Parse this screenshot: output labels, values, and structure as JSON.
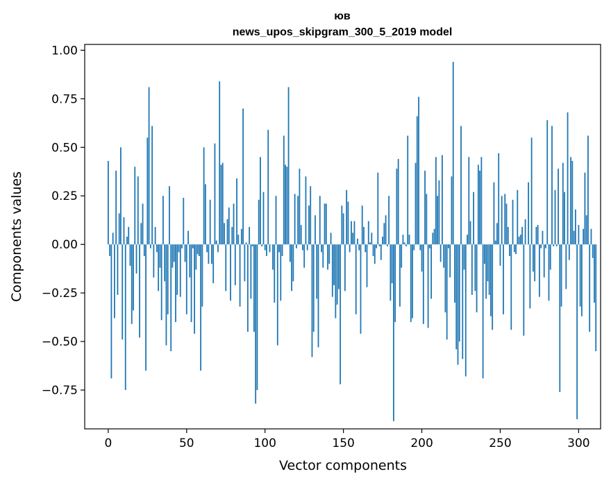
{
  "chart_data": {
    "type": "bar",
    "title": "юв",
    "subtitle": "news_upos_skipgram_300_5_2019 model",
    "xlabel": "Vector components",
    "ylabel": "Components values",
    "xlim": [
      -15,
      314
    ],
    "ylim": [
      -0.95,
      1.03
    ],
    "xticks": [
      0,
      50,
      100,
      150,
      200,
      250,
      300
    ],
    "yticks": [
      -0.75,
      -0.5,
      -0.25,
      0.0,
      0.25,
      0.5,
      0.75,
      1.0
    ],
    "xtick_labels": [
      "0",
      "50",
      "100",
      "150",
      "200",
      "250",
      "300"
    ],
    "ytick_labels": [
      "−0.75",
      "−0.50",
      "−0.25",
      "0.00",
      "0.25",
      "0.50",
      "0.75",
      "1.00"
    ],
    "bar_color": "#1f77b4",
    "values": [
      0.43,
      -0.06,
      -0.69,
      0.06,
      -0.38,
      0.38,
      -0.26,
      0.16,
      0.5,
      -0.49,
      0.14,
      -0.75,
      0.04,
      0.09,
      -0.11,
      -0.41,
      -0.34,
      0.4,
      -0.15,
      0.35,
      -0.48,
      0.11,
      0.21,
      -0.06,
      -0.65,
      0.55,
      0.81,
      -0.02,
      0.61,
      -0.17,
      0.09,
      -0.04,
      -0.24,
      -0.12,
      -0.39,
      0.25,
      -0.19,
      -0.52,
      -0.36,
      0.3,
      -0.55,
      -0.12,
      -0.09,
      -0.4,
      -0.26,
      -0.04,
      -0.27,
      -0.02,
      0.24,
      -0.09,
      -0.36,
      0.07,
      -0.17,
      -0.4,
      -0.02,
      -0.46,
      -0.13,
      -0.05,
      -0.06,
      -0.65,
      -0.32,
      0.5,
      0.31,
      -0.04,
      -0.1,
      0.23,
      -0.1,
      -0.2,
      0.52,
      0.02,
      -0.04,
      0.84,
      0.41,
      0.42,
      0.11,
      -0.24,
      0.13,
      0.19,
      -0.29,
      0.09,
      0.21,
      -0.21,
      0.34,
      0.05,
      -0.32,
      0.08,
      0.7,
      -0.19,
      0.01,
      -0.45,
      0.09,
      -0.28,
      -0.01,
      -0.45,
      -0.82,
      -0.75,
      0.23,
      0.45,
      -0.01,
      0.27,
      -0.03,
      -0.06,
      0.59,
      -0.04,
      0.0,
      -0.13,
      -0.3,
      0.25,
      -0.52,
      -0.04,
      -0.29,
      -0.06,
      0.56,
      0.41,
      0.4,
      0.81,
      -0.09,
      -0.24,
      -0.19,
      0.26,
      -0.02,
      0.25,
      0.39,
      0.1,
      -0.03,
      -0.12,
      0.35,
      -0.03,
      0.2,
      0.3,
      -0.58,
      -0.45,
      0.15,
      -0.28,
      -0.53,
      0.25,
      -0.04,
      -0.12,
      0.21,
      0.21,
      -0.13,
      -0.1,
      0.06,
      -0.27,
      -0.21,
      -0.38,
      -0.31,
      -0.23,
      -0.72,
      0.2,
      0.16,
      -0.24,
      0.28,
      0.22,
      -0.04,
      0.12,
      0.06,
      0.12,
      -0.36,
      0.03,
      -0.03,
      -0.46,
      0.2,
      0.09,
      -0.04,
      -0.22,
      0.12,
      0.01,
      0.06,
      -0.06,
      -0.1,
      -0.02,
      0.37,
      -0.01,
      -0.08,
      0.04,
      0.11,
      0.15,
      -0.01,
      0.25,
      -0.29,
      -0.2,
      -0.91,
      -0.4,
      0.39,
      0.44,
      -0.32,
      -0.12,
      0.05,
      0.01,
      -0.01,
      0.56,
      0.05,
      -0.4,
      -0.38,
      -0.03,
      0.42,
      0.66,
      0.76,
      -0.03,
      -0.14,
      -0.41,
      0.38,
      0.26,
      -0.43,
      -0.02,
      -0.28,
      0.06,
      0.08,
      0.45,
      0.25,
      0.33,
      -0.09,
      0.46,
      -0.12,
      -0.35,
      -0.49,
      -0.02,
      -0.17,
      0.35,
      0.94,
      -0.3,
      -0.54,
      -0.62,
      -0.5,
      0.61,
      -0.59,
      -0.13,
      -0.68,
      0.05,
      0.45,
      0.12,
      -0.26,
      0.27,
      -0.24,
      -0.35,
      0.41,
      0.38,
      0.45,
      -0.69,
      -0.1,
      -0.28,
      -0.19,
      -0.26,
      -0.37,
      -0.44,
      0.32,
      0.02,
      0.11,
      0.47,
      -0.11,
      0.25,
      -0.36,
      0.26,
      0.21,
      0.09,
      -0.06,
      -0.44,
      0.23,
      -0.04,
      -0.05,
      0.28,
      0.04,
      0.05,
      0.09,
      -0.47,
      0.13,
      0.0,
      0.32,
      -0.33,
      0.55,
      -0.14,
      -0.19,
      0.09,
      0.1,
      -0.27,
      -0.02,
      0.07,
      -0.17,
      -0.02,
      0.64,
      -0.29,
      -0.13,
      0.61,
      -0.01,
      0.28,
      -0.01,
      0.39,
      -0.76,
      -0.32,
      0.42,
      0.27,
      -0.23,
      0.68,
      -0.08,
      0.45,
      0.43,
      0.07,
      0.18,
      -0.9,
      0.1,
      -0.32,
      -0.37,
      0.08,
      0.37,
      0.15,
      0.56,
      -0.45,
      0.08,
      -0.07,
      -0.3,
      -0.55
    ]
  }
}
